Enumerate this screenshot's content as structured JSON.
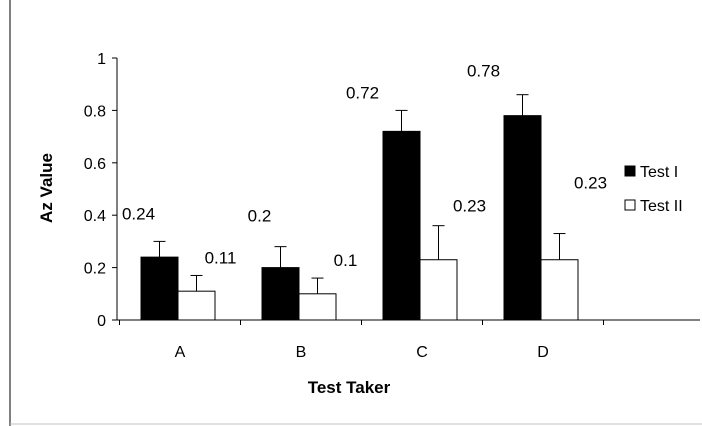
{
  "chart_data": {
    "type": "bar",
    "title": "",
    "xlabel": "Test Taker",
    "ylabel": "Az Value",
    "categories": [
      "A",
      "B",
      "C",
      "D"
    ],
    "series": [
      {
        "name": "Test I",
        "values": [
          0.24,
          0.2,
          0.72,
          0.78
        ],
        "errors": [
          0.06,
          0.08,
          0.08,
          0.08
        ],
        "fill": "#000000"
      },
      {
        "name": "Test II",
        "values": [
          0.11,
          0.1,
          0.23,
          0.23
        ],
        "errors": [
          0.06,
          0.06,
          0.13,
          0.1
        ],
        "fill": "#ffffff"
      }
    ],
    "data_labels": [
      [
        "0.24",
        "0.2",
        "0.72",
        "0.78"
      ],
      [
        "0.11",
        "0.1",
        "0.23",
        "0.23"
      ]
    ],
    "ylim": [
      0,
      1
    ],
    "yticks": [
      0,
      0.2,
      0.4,
      0.6,
      0.8,
      1
    ],
    "ytick_labels": [
      "0",
      "0.2",
      "0.4",
      "0.6",
      "0.8",
      "1"
    ],
    "grid": false,
    "legend": {
      "placement": "right",
      "entries": [
        "Test I",
        "Test II"
      ]
    }
  }
}
